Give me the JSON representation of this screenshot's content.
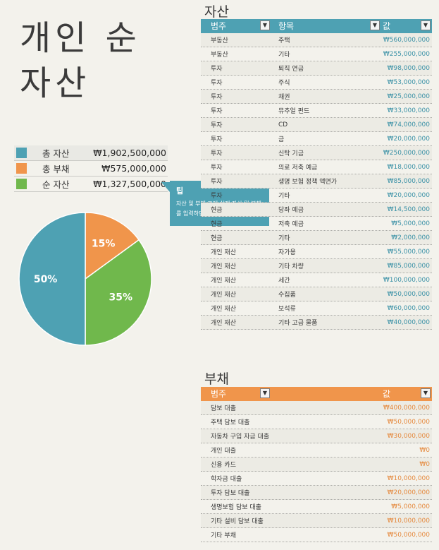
{
  "title": "개인 순 자산",
  "summary": [
    {
      "label": "총 자산",
      "value": "₩1,902,500,000",
      "color": "#4ea1b3"
    },
    {
      "label": "총 부채",
      "value": "₩575,000,000",
      "color": "#f0954b"
    },
    {
      "label": "순 자산",
      "value": "₩1,327,500,000",
      "color": "#70b84c"
    }
  ],
  "tooltip": {
    "title": "팁",
    "body": "자산 및 부채 표에 실제 자산 및 부채를 입력하면 순 자산이"
  },
  "chart_data": {
    "type": "pie",
    "slices": [
      {
        "label": "총 자산",
        "value": 50,
        "display": "50%",
        "color": "#4ea1b3"
      },
      {
        "label": "총 부채",
        "value": 15,
        "display": "15%",
        "color": "#f0954b"
      },
      {
        "label": "순 자산",
        "value": 35,
        "display": "35%",
        "color": "#70b84c"
      }
    ]
  },
  "assets": {
    "title": "자산",
    "header_color": "#4ea1b3",
    "amount_color": "#3a91a6",
    "headers": [
      "범주",
      "항목",
      "값"
    ],
    "rows": [
      [
        "부동산",
        "주택",
        "₩560,000,000"
      ],
      [
        "부동산",
        "기타",
        "₩255,000,000"
      ],
      [
        "투자",
        "퇴직 연금",
        "₩98,000,000"
      ],
      [
        "투자",
        "주식",
        "₩53,000,000"
      ],
      [
        "투자",
        "채권",
        "₩25,000,000"
      ],
      [
        "투자",
        "뮤추얼 펀드",
        "₩33,000,000"
      ],
      [
        "투자",
        "CD",
        "₩74,000,000"
      ],
      [
        "투자",
        "금",
        "₩20,000,000"
      ],
      [
        "투자",
        "신탁 기금",
        "₩250,000,000"
      ],
      [
        "투자",
        "의료 저축 예금",
        "₩18,000,000"
      ],
      [
        "투자",
        "생명 보험 정책 액면가",
        "₩85,000,000"
      ],
      [
        "투자",
        "기타",
        "₩20,000,000"
      ],
      [
        "현금",
        "당좌 예금",
        "₩14,500,000"
      ],
      [
        "현금",
        "저축 예금",
        "₩5,000,000"
      ],
      [
        "현금",
        "기타",
        "₩2,000,000"
      ],
      [
        "개인 재산",
        "자가용",
        "₩55,000,000"
      ],
      [
        "개인 재산",
        "기타 차량",
        "₩85,000,000"
      ],
      [
        "개인 재산",
        "세간",
        "₩100,000,000"
      ],
      [
        "개인 재산",
        "수집품",
        "₩50,000,000"
      ],
      [
        "개인 재산",
        "보석류",
        "₩60,000,000"
      ],
      [
        "개인 재산",
        "기타 고급 물품",
        "₩40,000,000"
      ]
    ]
  },
  "liabilities": {
    "title": "부채",
    "header_color": "#f0954b",
    "amount_color": "#e58a3f",
    "headers": [
      "범주",
      "값"
    ],
    "rows": [
      [
        "담보 대출",
        "₩400,000,000"
      ],
      [
        "주택 담보 대출",
        "₩50,000,000"
      ],
      [
        "자동차 구입 자금 대출",
        "₩30,000,000"
      ],
      [
        "개인 대출",
        "₩0"
      ],
      [
        "신용 카드",
        "₩0"
      ],
      [
        "학자금 대출",
        "₩10,000,000"
      ],
      [
        "투자 담보 대출",
        "₩20,000,000"
      ],
      [
        "생명보험 담보 대출",
        "₩5,000,000"
      ],
      [
        "기타 설비 담보 대출",
        "₩10,000,000"
      ],
      [
        "기타 부채",
        "₩50,000,000"
      ]
    ]
  }
}
